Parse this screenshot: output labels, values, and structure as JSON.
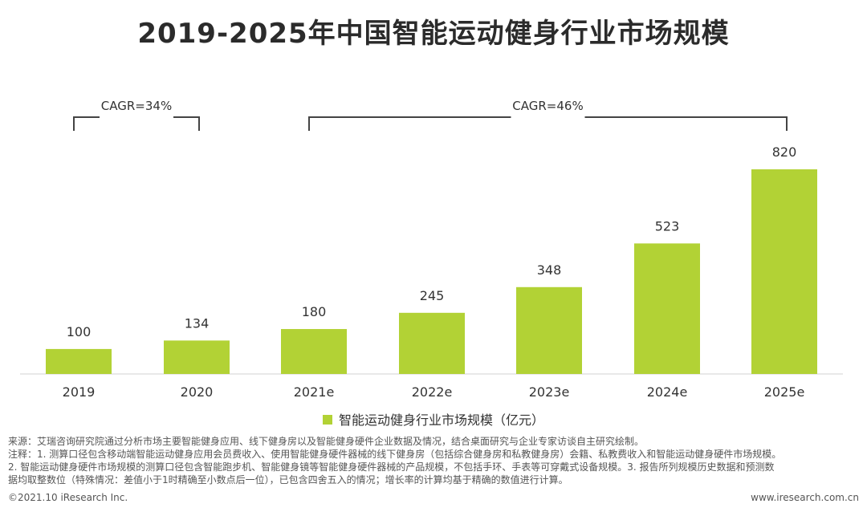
{
  "chart_data": {
    "type": "bar",
    "title": "2019-2025年中国智能运动健身行业市场规模",
    "categories": [
      "2019",
      "2020",
      "2021e",
      "2022e",
      "2023e",
      "2024e",
      "2025e"
    ],
    "values": [
      100,
      134,
      180,
      245,
      348,
      523,
      820
    ],
    "series": [
      {
        "name": "智能运动健身行业市场规模（亿元）",
        "values": [
          100,
          134,
          180,
          245,
          348,
          523,
          820
        ]
      }
    ],
    "ylim": [
      0,
      820
    ],
    "xlabel": "",
    "ylabel": "",
    "legend_position": "bottom",
    "bar_color": "#b2d235",
    "annotations": [
      {
        "label": "CAGR=34%",
        "from": "2019",
        "to": "2020"
      },
      {
        "label": "CAGR=46%",
        "from": "2021e",
        "to": "2025e"
      }
    ]
  },
  "notes": {
    "source": "来源：艾瑞咨询研究院通过分析市场主要智能健身应用、线下健身房以及智能健身硬件企业数据及情况，结合桌面研究与企业专家访谈自主研究绘制。",
    "note1": "注释：1. 测算口径包含移动端智能运动健身应用会员费收入、使用智能健身硬件器械的线下健身房（包括综合健身房和私教健身房）会籍、私教费收入和智能运动健身硬件市场规模。",
    "note2": "2. 智能运动健身硬件市场规模的测算口径包含智能跑步机、智能健身镜等智能健身硬件器械的产品规模，不包括手环、手表等可穿戴式设备规模。3. 报告所列规模历史数据和预测数",
    "note3": "据均取整数位（特殊情况：差值小于1时精确至小数点后一位），已包含四舍五入的情况；增长率的计算均基于精确的数值进行计算。"
  },
  "footer": {
    "copyright": "©2021.10 iResearch Inc.",
    "website": "www.iresearch.com.cn"
  }
}
